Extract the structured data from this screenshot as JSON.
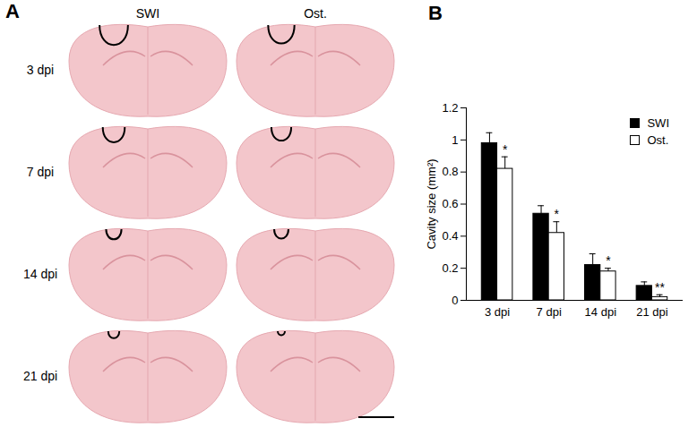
{
  "chart_data": {
    "type": "bar",
    "panel_label": "B",
    "y_label": "Cavity size (mm²)",
    "categories": [
      "3 dpi",
      "7 dpi",
      "14 dpi",
      "21 dpi"
    ],
    "series": [
      {
        "name": "SWI",
        "color": "#000000",
        "values": [
          0.98,
          0.54,
          0.22,
          0.09
        ],
        "errors": [
          0.065,
          0.05,
          0.07,
          0.025
        ]
      },
      {
        "name": "Ost.",
        "color": "#ffffff",
        "values": [
          0.82,
          0.42,
          0.18,
          0.02
        ],
        "errors": [
          0.075,
          0.07,
          0.02,
          0.015
        ],
        "annotations": [
          "*",
          "*",
          "*",
          "**"
        ]
      }
    ],
    "ylim": [
      0,
      1.2
    ],
    "yticks": [
      0,
      0.2,
      0.4,
      0.6,
      0.8,
      1,
      1.2
    ],
    "legend": "top-right",
    "grid": false
  },
  "images": {
    "panel_label": "A",
    "columns": [
      "SWI",
      "Ost."
    ],
    "rows": [
      "3 dpi",
      "7 dpi",
      "14 dpi",
      "21 dpi"
    ]
  }
}
